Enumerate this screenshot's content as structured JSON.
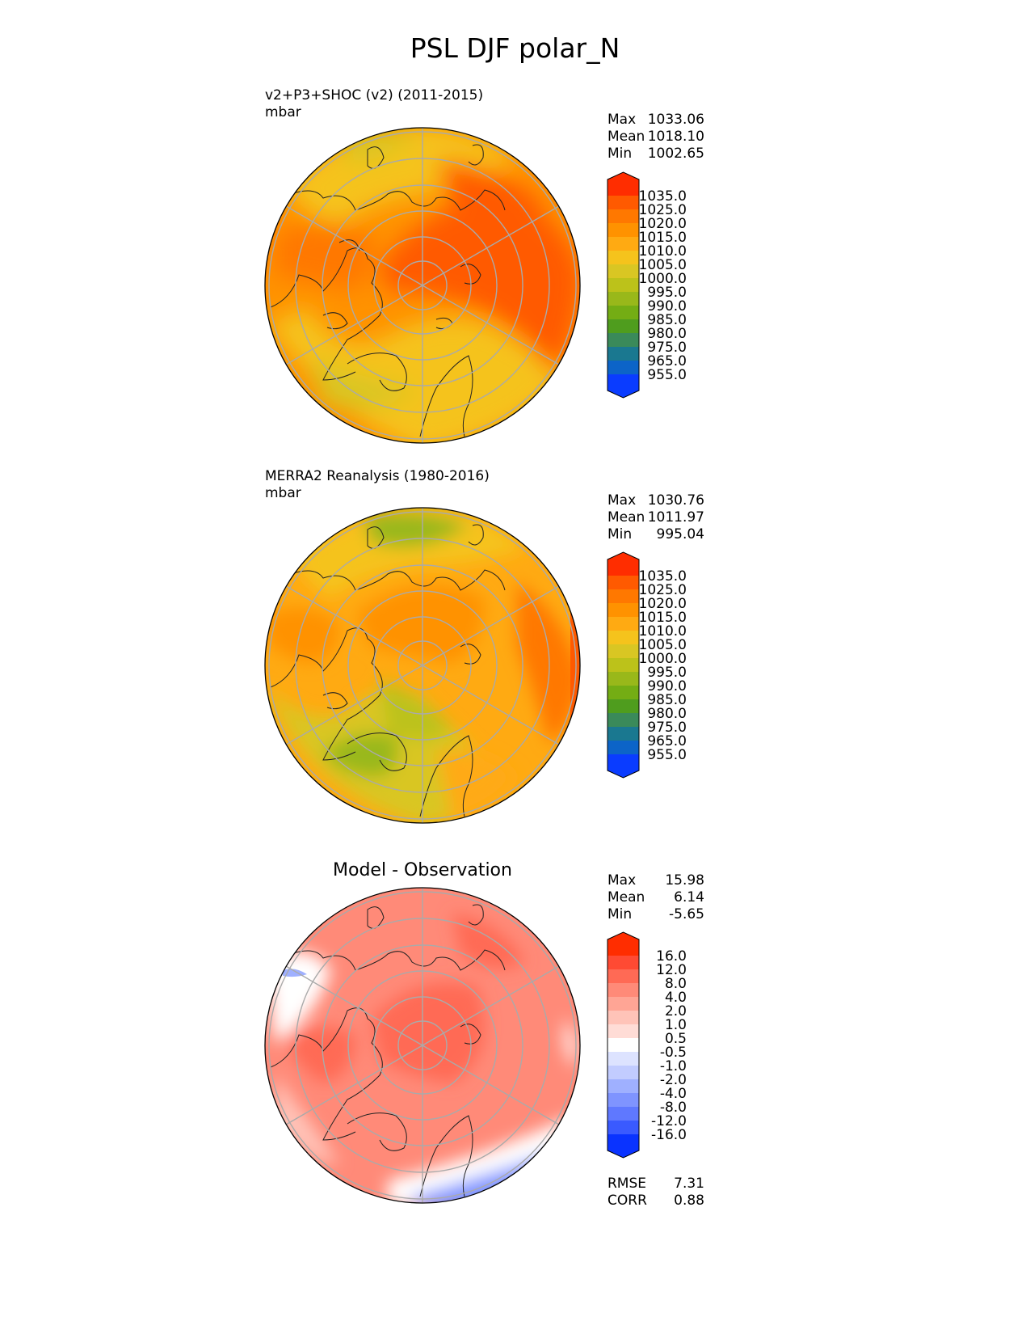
{
  "page_title": "PSL DJF polar_N",
  "chart_data": [
    {
      "type": "heatmap",
      "projection": "north-polar-stereographic",
      "title": "v2+P3+SHOC (v2) (2011-2015)",
      "units": "mbar",
      "stats": {
        "max_label": "Max",
        "max": "1033.06",
        "mean_label": "Mean",
        "mean": "1018.10",
        "min_label": "Min",
        "min": "1002.65"
      },
      "colorbar_levels": [
        "1035.0",
        "1025.0",
        "1020.0",
        "1015.0",
        "1010.0",
        "1005.0",
        "1000.0",
        "995.0",
        "990.0",
        "985.0",
        "980.0",
        "975.0",
        "965.0",
        "955.0"
      ],
      "colorbar_colors": [
        "#ff2d00",
        "#ff5a00",
        "#ff7800",
        "#ff9200",
        "#ffaa12",
        "#f5c31c",
        "#d9c623",
        "#bcc21a",
        "#99b81a",
        "#74ad14",
        "#4f9d1e",
        "#3a8a5a",
        "#1a7890",
        "#0c64c8",
        "#0a3cff"
      ]
    },
    {
      "type": "heatmap",
      "projection": "north-polar-stereographic",
      "title": "MERRA2 Reanalysis (1980-2016)",
      "units": "mbar",
      "stats": {
        "max_label": "Max",
        "max": "1030.76",
        "mean_label": "Mean",
        "mean": "1011.97",
        "min_label": "Min",
        "min": "995.04"
      },
      "colorbar_levels": [
        "1035.0",
        "1025.0",
        "1020.0",
        "1015.0",
        "1010.0",
        "1005.0",
        "1000.0",
        "995.0",
        "990.0",
        "985.0",
        "980.0",
        "975.0",
        "965.0",
        "955.0"
      ],
      "colorbar_colors": [
        "#ff2d00",
        "#ff5a00",
        "#ff7800",
        "#ff9200",
        "#ffaa12",
        "#f5c31c",
        "#d9c623",
        "#bcc21a",
        "#99b81a",
        "#74ad14",
        "#4f9d1e",
        "#3a8a5a",
        "#1a7890",
        "#0c64c8",
        "#0a3cff"
      ]
    },
    {
      "type": "heatmap",
      "projection": "north-polar-stereographic",
      "title": "Model - Observation",
      "stats": {
        "max_label": "Max",
        "max": "15.98",
        "mean_label": "Mean",
        "mean": "6.14",
        "min_label": "Min",
        "min": "-5.65"
      },
      "metrics": {
        "rmse_label": "RMSE",
        "rmse": "7.31",
        "corr_label": "CORR",
        "corr": "0.88"
      },
      "colorbar_levels": [
        "16.0",
        "12.0",
        "8.0",
        "4.0",
        "2.0",
        "1.0",
        "0.5",
        "-0.5",
        "-1.0",
        "-2.0",
        "-4.0",
        "-8.0",
        "-12.0",
        "-16.0"
      ],
      "colorbar_colors": [
        "#ff2d00",
        "#ff4a33",
        "#ff6a55",
        "#ff8a78",
        "#ffa595",
        "#ffc3b8",
        "#ffdcd6",
        "#ffffff",
        "#dde3ff",
        "#c2ccff",
        "#9fb0ff",
        "#7f94ff",
        "#5f78ff",
        "#3a5aff",
        "#0a33ff"
      ]
    }
  ]
}
